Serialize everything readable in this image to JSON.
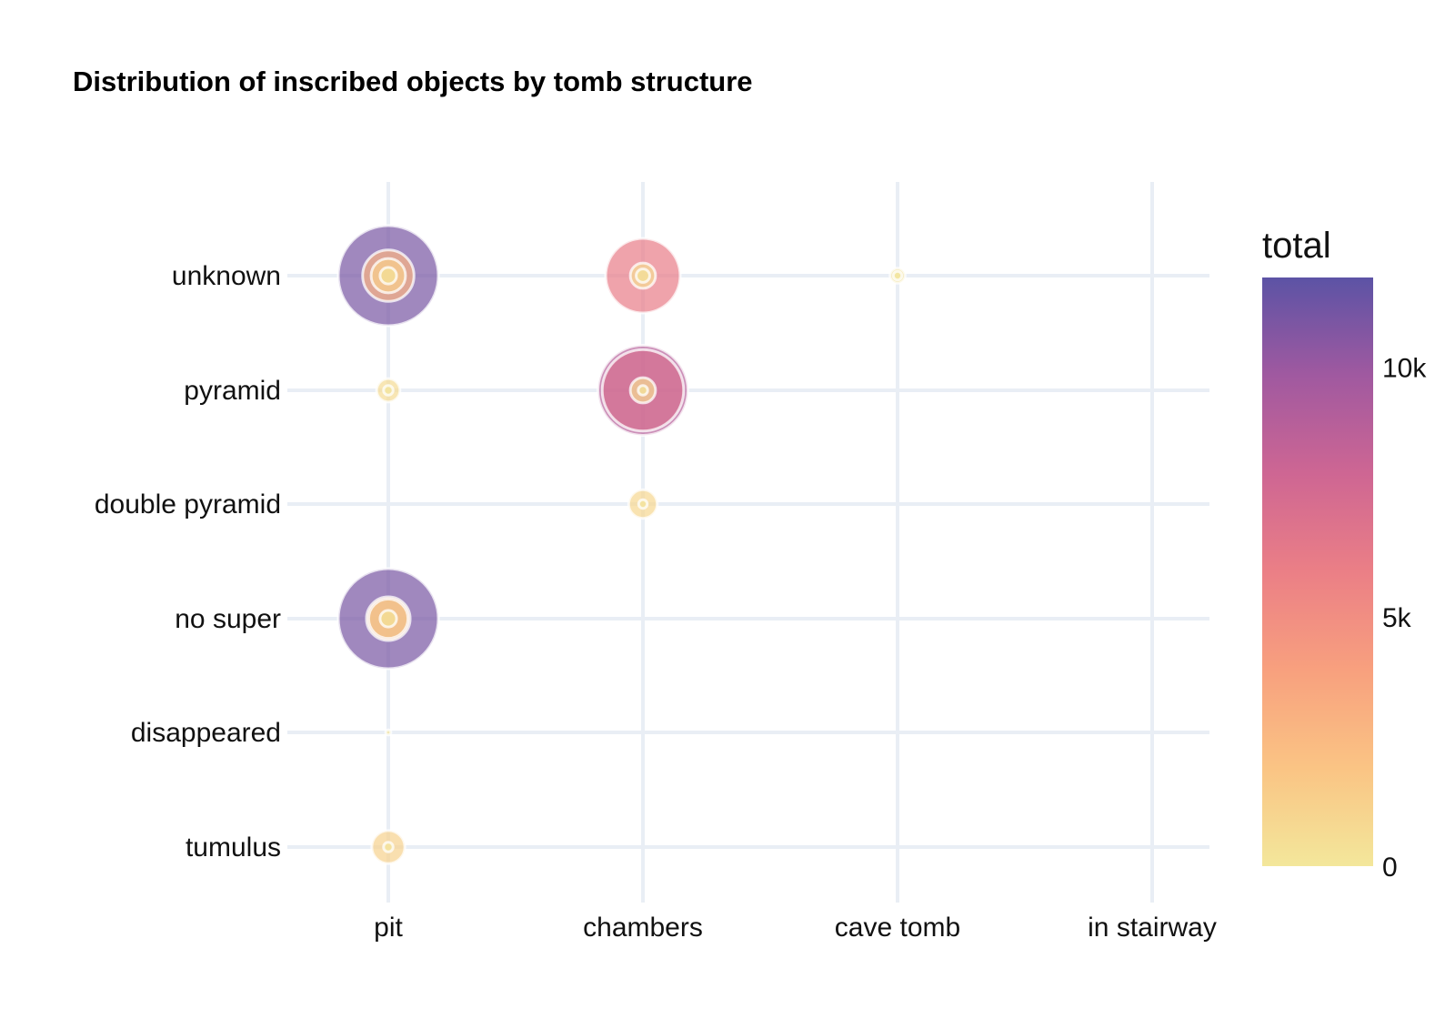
{
  "chart_data": {
    "type": "scatter",
    "subtype": "bubble",
    "title": "Distribution of inscribed objects by tomb structure",
    "xlabel": "",
    "ylabel": "",
    "x_categories": [
      "pit",
      "chambers",
      "cave tomb",
      "in stairway"
    ],
    "y_categories": [
      "unknown",
      "pyramid",
      "double pyramid",
      "no super",
      "disappeared",
      "tumulus"
    ],
    "size_and_color_variable": "total",
    "colorbar": {
      "title": "total",
      "range": [
        0,
        11800
      ],
      "ticks": [
        {
          "value": 0,
          "label": "0"
        },
        {
          "value": 5000,
          "label": "5k"
        },
        {
          "value": 10000,
          "label": "10k"
        }
      ],
      "colors": [
        "#f3e79b",
        "#fac484",
        "#f8a07e",
        "#eb7f86",
        "#ce6693",
        "#a059a0",
        "#5c53a5"
      ]
    },
    "grid": true,
    "legend_placement": "right",
    "marker_opacity": 0.7,
    "points": [
      {
        "x": "pit",
        "y": "unknown",
        "layers": [
          11000,
          2900,
          1300,
          300
        ]
      },
      {
        "x": "chambers",
        "y": "unknown",
        "layers": [
          6100,
          700,
          200
        ]
      },
      {
        "x": "cave tomb",
        "y": "unknown",
        "layers": [
          250,
          80
        ]
      },
      {
        "x": "pit",
        "y": "pyramid",
        "layers": [
          600,
          100
        ]
      },
      {
        "x": "chambers",
        "y": "pyramid",
        "layers": [
          8900,
          7300,
          700,
          100
        ]
      },
      {
        "x": "chambers",
        "y": "double pyramid",
        "layers": [
          900,
          80
        ]
      },
      {
        "x": "pit",
        "y": "no super",
        "layers": [
          11000,
          2100,
          1700,
          300
        ]
      },
      {
        "x": "pit",
        "y": "disappeared",
        "layers": [
          30
        ]
      },
      {
        "x": "pit",
        "y": "tumulus",
        "layers": [
          1200,
          100
        ]
      }
    ]
  }
}
